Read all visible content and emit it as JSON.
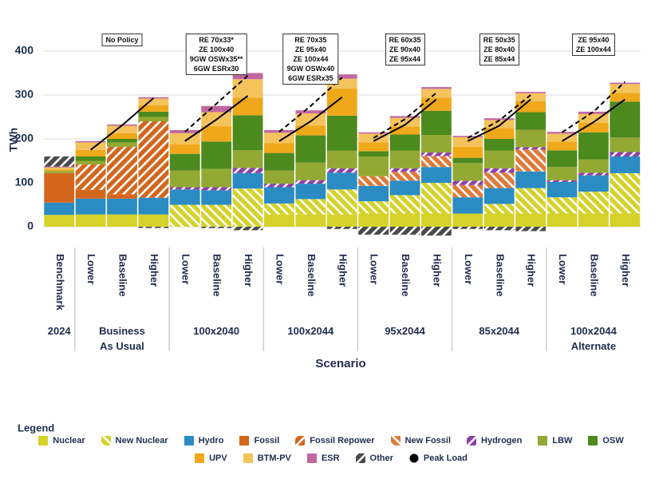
{
  "chart_data": {
    "type": "bar",
    "stacked": true,
    "y_label": "TWh",
    "x_label": "Scenario",
    "legend_title": "Legend",
    "ylim": [
      -25,
      420
    ],
    "yticks": [
      0,
      100,
      200,
      300,
      400
    ],
    "grid": true,
    "groups": [
      {
        "label": "2024",
        "categories": [
          "Benchmark"
        ]
      },
      {
        "label": "Business As Usual",
        "categories": [
          "Lower",
          "Baseline",
          "Higher"
        ],
        "policy": [
          "No Policy"
        ]
      },
      {
        "label": "100x2040",
        "categories": [
          "Lower",
          "Baseline",
          "Higher"
        ],
        "policy": [
          "RE 70x33*",
          "ZE 100x40",
          "9GW OSWx35**",
          "6GW ESRx30"
        ]
      },
      {
        "label": "100x2044",
        "categories": [
          "Lower",
          "Baseline",
          "Higher"
        ],
        "policy": [
          "RE 70x35",
          "ZE 95x40",
          "ZE 100x44",
          "9GW OSWx40",
          "6GW ESRx35"
        ]
      },
      {
        "label": "95x2044",
        "categories": [
          "Lower",
          "Baseline",
          "Higher"
        ],
        "policy": [
          "RE 60x35",
          "ZE 90x40",
          "ZE 95x44"
        ]
      },
      {
        "label": "85x2044",
        "categories": [
          "Lower",
          "Baseline",
          "Higher"
        ],
        "policy": [
          "RE 50x35",
          "ZE 80x40",
          "ZE 85x44"
        ]
      },
      {
        "label": "100x2044 Alternate",
        "categories": [
          "Lower",
          "Baseline",
          "Higher"
        ],
        "policy": [
          "ZE 95x40",
          "ZE 100x44"
        ]
      }
    ],
    "series": [
      {
        "name": "Nuclear",
        "color": "#d6d22a",
        "hatch": false,
        "values": [
          27,
          28,
          28,
          28,
          0,
          0,
          0,
          28,
          28,
          28,
          30,
          30,
          30,
          30,
          30,
          30,
          30,
          30,
          30
        ]
      },
      {
        "name": "New Nuclear",
        "color": "#d6d22a",
        "hatch": true,
        "values": [
          0,
          0,
          0,
          0,
          50,
          50,
          87,
          25,
          35,
          57,
          28,
          42,
          70,
          0,
          22,
          58,
          37,
          50,
          92
        ]
      },
      {
        "name": "Hydro",
        "color": "#2b8cc4",
        "hatch": false,
        "values": [
          28,
          36,
          36,
          38,
          35,
          33,
          35,
          37,
          35,
          38,
          35,
          33,
          36,
          37,
          36,
          38,
          35,
          37,
          38
        ]
      },
      {
        "name": "Fossil",
        "color": "#d4661c",
        "hatch": false,
        "values": [
          67,
          20,
          10,
          0,
          0,
          0,
          0,
          0,
          0,
          0,
          0,
          0,
          0,
          0,
          0,
          0,
          0,
          0,
          0
        ]
      },
      {
        "name": "Fossil Repower",
        "color": "#d4661c",
        "hatch": true,
        "values": [
          0,
          58,
          108,
          174,
          0,
          0,
          0,
          0,
          0,
          0,
          0,
          0,
          0,
          0,
          0,
          0,
          0,
          0,
          0
        ]
      },
      {
        "name": "New Fossil",
        "color": "#e07a3a",
        "hatch": true,
        "values": [
          0,
          0,
          0,
          0,
          0,
          0,
          0,
          0,
          0,
          0,
          22,
          20,
          25,
          28,
          35,
          50,
          0,
          0,
          0
        ]
      },
      {
        "name": "Hydrogen",
        "color": "#8e3fa8",
        "hatch": true,
        "values": [
          0,
          0,
          0,
          0,
          5,
          7,
          12,
          8,
          8,
          10,
          0,
          8,
          8,
          10,
          10,
          5,
          4,
          6,
          10
        ]
      },
      {
        "name": "LBW",
        "color": "#93a933",
        "hatch": false,
        "values": [
          5,
          8,
          10,
          10,
          38,
          42,
          40,
          30,
          40,
          40,
          45,
          40,
          40,
          40,
          40,
          40,
          30,
          30,
          33
        ]
      },
      {
        "name": "OSW",
        "color": "#4d8a1e",
        "hatch": false,
        "values": [
          0,
          10,
          8,
          12,
          38,
          62,
          80,
          40,
          62,
          80,
          12,
          37,
          55,
          12,
          27,
          40,
          38,
          62,
          82
        ]
      },
      {
        "name": "UPV",
        "color": "#efa81a",
        "hatch": false,
        "values": [
          3,
          15,
          13,
          15,
          22,
          35,
          40,
          22,
          22,
          62,
          20,
          18,
          30,
          25,
          25,
          25,
          20,
          22,
          20
        ]
      },
      {
        "name": "BTM-PV",
        "color": "#f4c35c",
        "hatch": false,
        "values": [
          5,
          17,
          17,
          15,
          25,
          32,
          42,
          24,
          28,
          22,
          20,
          20,
          20,
          22,
          18,
          18,
          18,
          20,
          20
        ]
      },
      {
        "name": "ESR",
        "color": "#c0679f",
        "hatch": false,
        "values": [
          2,
          3,
          3,
          3,
          7,
          14,
          14,
          6,
          7,
          10,
          3,
          4,
          4,
          3,
          4,
          3,
          4,
          5,
          3
        ]
      },
      {
        "name": "Other",
        "color": "#4a4a4a",
        "hatch": true,
        "values": [
          23,
          0,
          0,
          -3,
          0,
          -3,
          -8,
          0,
          0,
          -5,
          -18,
          -18,
          -20,
          -5,
          -8,
          -10,
          0,
          0,
          0
        ]
      }
    ],
    "lines": [
      {
        "name": "Peak Load",
        "color": "#000000",
        "dash": false,
        "values": [
          null,
          175,
          231,
          293,
          195,
          244,
          298,
          195,
          240,
          295,
          195,
          232,
          290,
          195,
          230,
          290,
          195,
          238,
          290
        ]
      },
      {
        "color": "#000000",
        "dash": true,
        "values": [
          null,
          null,
          null,
          null,
          216,
          280,
          344,
          216,
          275,
          340,
          202,
          245,
          305,
          202,
          242,
          300,
          215,
          262,
          330
        ]
      }
    ]
  }
}
